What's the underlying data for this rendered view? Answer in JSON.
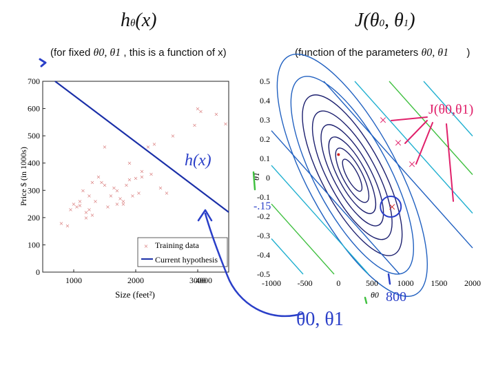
{
  "header": {
    "left_formula": "hθ(x)",
    "left_formula_main": "h",
    "left_formula_sub": "θ",
    "left_formula_arg": "(x)",
    "right_formula": "J(θ0, θ1)",
    "right_formula_main": "J(θ",
    "right_formula_sub0": "0",
    "right_formula_mid": ", θ",
    "right_formula_sub1": "1",
    "right_formula_end": ")",
    "left_caption_prefix": "(for fixed",
    "left_caption_params": "θ0, θ1",
    "left_caption_suffix": ", this is a function of x)",
    "right_caption_prefix": "(function of the parameters",
    "right_caption_params": "θ0, θ1",
    "right_caption_suffix": ")"
  },
  "annotations": {
    "hx_label": "h(x)",
    "j_label": "J(θ0,θ1)",
    "theta_label": "θ0, θ1",
    "value_800": "800",
    "value_neg015": "-.15"
  },
  "colors": {
    "hypothesis": "#1a2fa8",
    "training": "#d46a6a",
    "annotation_red": "#e0206a",
    "annotation_blue": "#2a3fc8",
    "contour_dark": "#1c1f6e",
    "contour_blue": "#2060c0",
    "contour_cyan": "#20b0d0",
    "contour_green": "#40c040"
  },
  "chart_data": [
    {
      "type": "scatter",
      "title": "",
      "xlabel": "Size (feet²)",
      "ylabel": "Price $ (in 1000s)",
      "xlim": [
        500,
        3500
      ],
      "ylim": [
        0,
        700
      ],
      "xticks": [
        1000,
        2000,
        3000,
        4000
      ],
      "yticks": [
        0,
        100,
        200,
        300,
        400,
        500,
        600,
        700
      ],
      "legend": [
        "Training data",
        "Current hypothesis"
      ],
      "legend_position": "bottom-right",
      "series": [
        {
          "name": "Training data",
          "marker": "x",
          "x": [
            800,
            900,
            950,
            1000,
            1050,
            1100,
            1150,
            1200,
            1250,
            1300,
            1350,
            1400,
            1450,
            1500,
            1550,
            1600,
            1650,
            1700,
            1750,
            1800,
            1850,
            1900,
            1950,
            2000,
            2050,
            2100,
            2200,
            2300,
            2400,
            2500,
            2600,
            2950,
            3000,
            3050,
            3300,
            3450,
            1500,
            2100,
            2250,
            1200,
            1300,
            1700,
            1800,
            1900,
            1100,
            1250
          ],
          "y": [
            180,
            170,
            230,
            250,
            240,
            260,
            300,
            220,
            280,
            210,
            260,
            350,
            330,
            460,
            240,
            280,
            310,
            300,
            270,
            250,
            320,
            400,
            280,
            345,
            290,
            350,
            460,
            470,
            310,
            290,
            500,
            540,
            600,
            590,
            580,
            545,
            320,
            370,
            360,
            200,
            330,
            250,
            260,
            340,
            245,
            230
          ]
        },
        {
          "name": "Current hypothesis",
          "type": "line",
          "x": [
            700,
            3500
          ],
          "y": [
            700,
            220
          ]
        }
      ]
    },
    {
      "type": "contour",
      "title": "",
      "xlabel": "θ0",
      "ylabel": "θ1",
      "xlim": [
        -1000,
        2000
      ],
      "ylim": [
        -0.5,
        0.5
      ],
      "xticks": [
        -1000,
        -500,
        0,
        500,
        1000,
        1500,
        2000
      ],
      "yticks": [
        0.5,
        0.4,
        0.3,
        0.2,
        0.1,
        0,
        -0.1,
        -0.2,
        -0.3,
        -0.4,
        -0.5
      ],
      "minimum": {
        "theta0": 0,
        "theta1": 0.12
      },
      "marked_point": {
        "theta0": 800,
        "theta1": -0.15
      }
    }
  ]
}
